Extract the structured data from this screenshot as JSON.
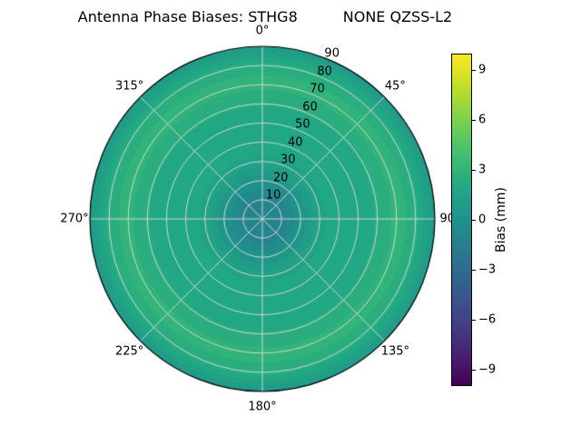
{
  "header": {
    "title_left": "Antenna Phase Biases: STHG8",
    "title_right": "NONE QZSS-L2"
  },
  "chart_data": {
    "type": "heatmap",
    "projection": "polar",
    "title": "Antenna Phase Biases: STHG8 NONE QZSS-L2",
    "angular_axis": {
      "direction": "clockwise",
      "zero_position": "top",
      "tick_step_deg": 45
    },
    "angular_ticks": [
      {
        "angle_deg": 0,
        "label": "0°"
      },
      {
        "angle_deg": 45,
        "label": "45°"
      },
      {
        "angle_deg": 90,
        "label": "90°"
      },
      {
        "angle_deg": 135,
        "label": "135°"
      },
      {
        "angle_deg": 180,
        "label": "180°"
      },
      {
        "angle_deg": 225,
        "label": "225°"
      },
      {
        "angle_deg": 270,
        "label": "270°"
      },
      {
        "angle_deg": 315,
        "label": "315°"
      }
    ],
    "radial_axis": {
      "min": 0,
      "max": 90,
      "tick_step": 10,
      "label_angle_deg": 22.5
    },
    "radial_tick_values": [
      10,
      20,
      30,
      40,
      50,
      60,
      70,
      80,
      90
    ],
    "radial_tick_labels": [
      "10",
      "20",
      "30",
      "40",
      "50",
      "60",
      "70",
      "80",
      "90"
    ],
    "colorbar": {
      "label": "Bias (mm)",
      "min": -10,
      "max": 10,
      "tick_values": [
        9,
        6,
        3,
        0,
        -3,
        -6,
        -9
      ],
      "tick_labels": [
        "9",
        "6",
        "3",
        "0",
        "−3",
        "−6",
        "−9"
      ]
    },
    "colormap": {
      "name": "viridis",
      "stops": [
        "#440154",
        "#482475",
        "#414487",
        "#355f8d",
        "#2a788e",
        "#21918c",
        "#22a884",
        "#44bf70",
        "#7ad151",
        "#bddf26",
        "#fde725"
      ]
    },
    "contour_step_mm": 0.5,
    "radial_profile": {
      "zenith": [
        0,
        10,
        20,
        30,
        40,
        50,
        60,
        70,
        80,
        90
      ],
      "bias_mm": [
        -0.9,
        -1.2,
        0.3,
        1.6,
        2.1,
        1.9,
        2.3,
        2.9,
        2.6,
        0.7
      ]
    },
    "grid": {
      "show": true,
      "color": "#dcdcdc"
    }
  }
}
